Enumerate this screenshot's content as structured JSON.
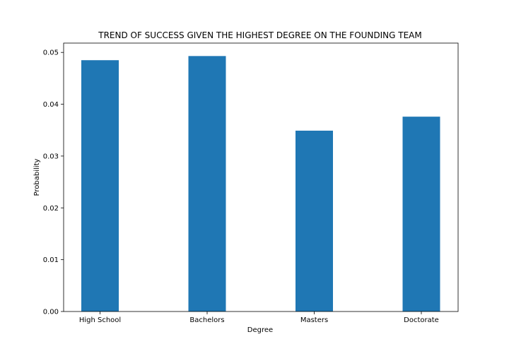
{
  "chart_data": {
    "type": "bar",
    "title": "TREND OF SUCCESS GIVEN THE HIGHEST DEGREE ON THE FOUNDING TEAM",
    "xlabel": "Degree",
    "ylabel": "Probability",
    "categories": [
      "High School",
      "Bachelors",
      "Masters",
      "Doctorate"
    ],
    "values": [
      0.0485,
      0.0493,
      0.0349,
      0.0376
    ],
    "ylim": [
      0,
      0.0518
    ],
    "yticks": [
      "0.00",
      "0.01",
      "0.02",
      "0.03",
      "0.04",
      "0.05"
    ],
    "grid": false,
    "bar_color": "#1f77b4"
  }
}
